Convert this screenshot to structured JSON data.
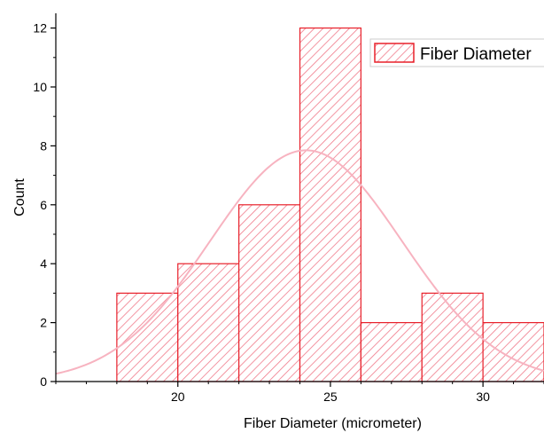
{
  "chart_data": {
    "type": "bar",
    "bins": [
      {
        "start": 18,
        "end": 20,
        "count": 3
      },
      {
        "start": 20,
        "end": 22,
        "count": 4
      },
      {
        "start": 22,
        "end": 24,
        "count": 6
      },
      {
        "start": 24,
        "end": 26,
        "count": 12
      },
      {
        "start": 26,
        "end": 28,
        "count": 2
      },
      {
        "start": 28,
        "end": 30,
        "count": 3
      },
      {
        "start": 30,
        "end": 32,
        "count": 2
      }
    ],
    "fit_curve": {
      "type": "normal",
      "mean": 24.2,
      "sd": 3.15,
      "peak": 7.85
    },
    "xlabel": "Fiber Diameter (micrometer)",
    "ylabel": "Count",
    "xlim": [
      16,
      32
    ],
    "ylim": [
      0,
      12.5
    ],
    "xticks": [
      20,
      25,
      30
    ],
    "yticks": [
      0,
      2,
      4,
      6,
      8,
      10,
      12
    ],
    "legend": {
      "label": "Fiber Diameter",
      "position": "top-right"
    },
    "grid": false,
    "colors": {
      "bar_stroke": "#e8202a",
      "hatch": "#f07a8a",
      "curve": "#f7b3c0",
      "axis": "#000000"
    }
  }
}
